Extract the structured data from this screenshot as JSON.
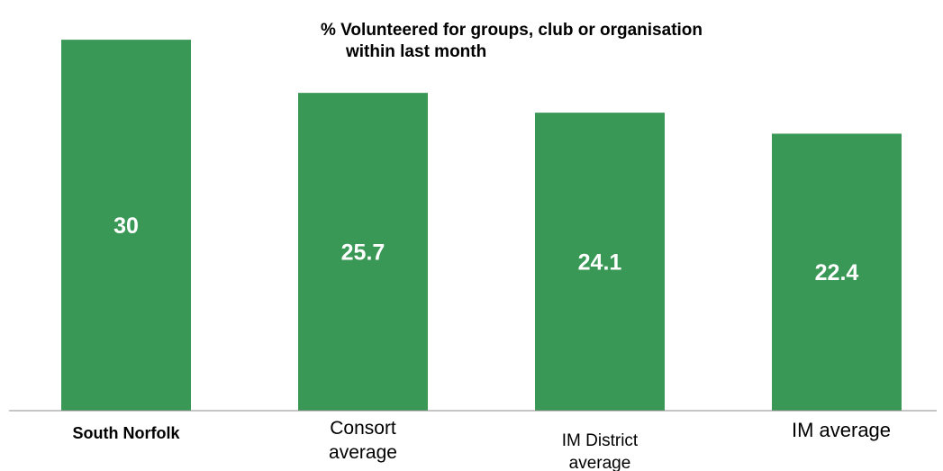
{
  "chart_data": {
    "type": "bar",
    "title": "% Volunteered for groups, club or organisation",
    "title_line2": "within last month",
    "categories": [
      "South Norfolk",
      "Consort average",
      "IM District average",
      "IM average"
    ],
    "values": [
      30,
      25.7,
      24.1,
      22.4
    ],
    "value_labels": [
      "30",
      "25.7",
      "24.1",
      "22.4"
    ],
    "ylim": [
      0,
      33
    ],
    "grid": false,
    "legend": "none",
    "bar_color": "#3a9856"
  }
}
